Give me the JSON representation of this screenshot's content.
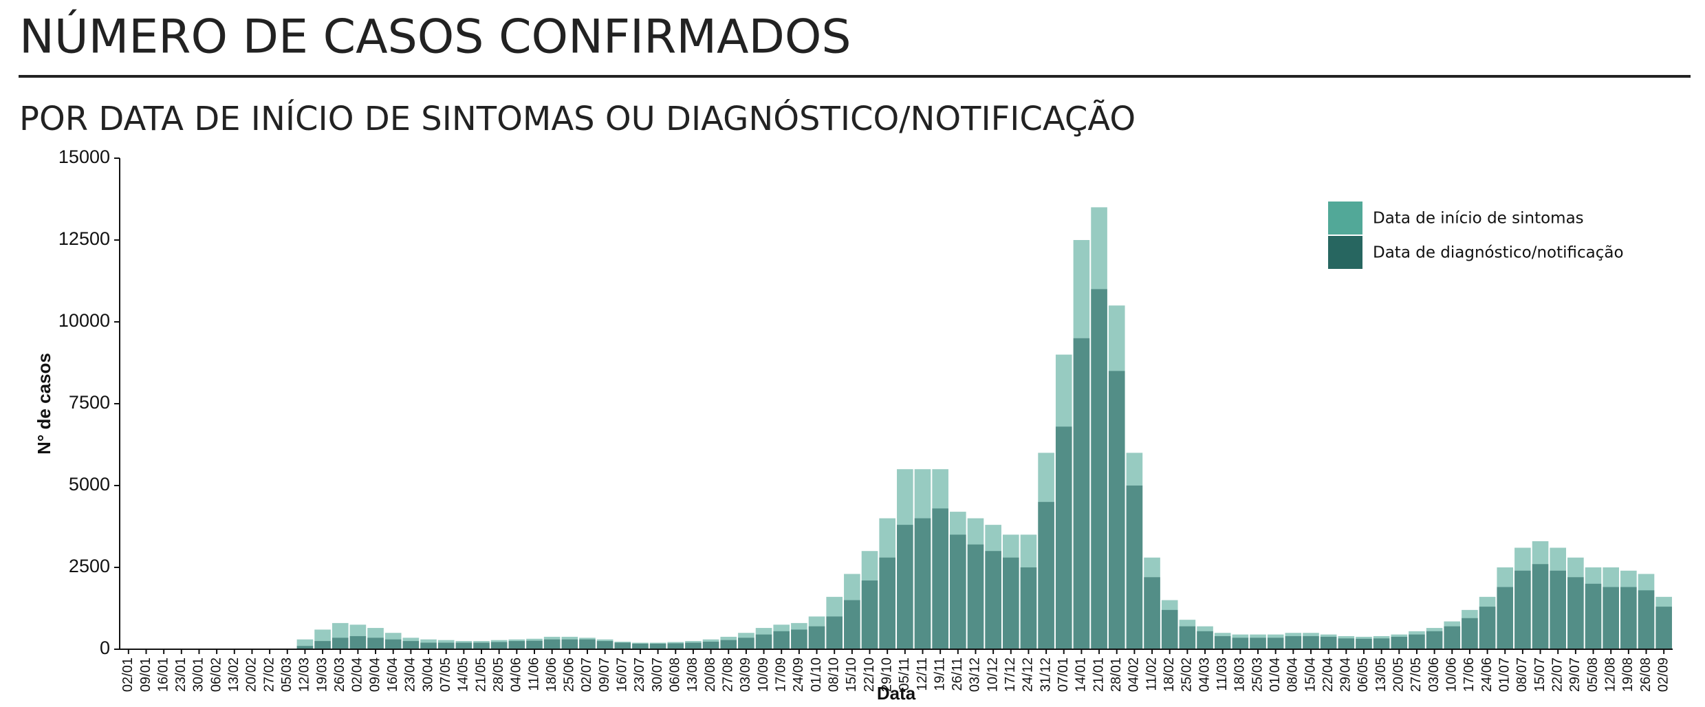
{
  "chart_data": {
    "type": "bar",
    "title": "NÚMERO DE CASOS CONFIRMADOS",
    "subtitle": "POR DATA DE INÍCIO DE SINTOMAS OU DIAGNÓSTICO/NOTIFICAÇÃO",
    "x_label": "Data",
    "y_label": "N° de casos",
    "categories": [
      "02/01",
      "09/01",
      "16/01",
      "23/01",
      "30/01",
      "06/02",
      "13/02",
      "20/02",
      "27/02",
      "05/03",
      "12/03",
      "19/03",
      "26/03",
      "02/04",
      "09/04",
      "16/04",
      "23/04",
      "30/04",
      "07/05",
      "14/05",
      "21/05",
      "28/05",
      "04/06",
      "11/06",
      "18/06",
      "25/06",
      "02/07",
      "09/07",
      "16/07",
      "23/07",
      "30/07",
      "06/08",
      "13/08",
      "20/08",
      "27/08",
      "03/09",
      "10/09",
      "17/09",
      "24/09",
      "01/10",
      "08/10",
      "15/10",
      "22/10",
      "29/10",
      "05/11",
      "12/11",
      "19/11",
      "26/11",
      "03/12",
      "10/12",
      "17/12",
      "24/12",
      "31/12",
      "07/01",
      "14/01",
      "21/01",
      "28/01",
      "04/02",
      "11/02",
      "18/02",
      "25/02",
      "04/03",
      "11/03",
      "18/03",
      "25/03",
      "01/04",
      "08/04",
      "15/04",
      "22/04",
      "29/04",
      "06/05",
      "13/05",
      "20/05",
      "27/05",
      "03/06",
      "10/06",
      "17/06",
      "24/06",
      "01/07",
      "08/07",
      "15/07",
      "22/07",
      "29/07",
      "05/08",
      "12/08",
      "19/08",
      "26/08",
      "02/09"
    ],
    "series": [
      {
        "name": "Data de início de sintomas",
        "color": "#52a898",
        "values": [
          0,
          0,
          0,
          0,
          0,
          0,
          0,
          0,
          0,
          20,
          300,
          600,
          800,
          750,
          650,
          500,
          350,
          300,
          280,
          250,
          250,
          280,
          300,
          320,
          380,
          380,
          350,
          300,
          230,
          200,
          200,
          220,
          250,
          300,
          380,
          500,
          650,
          750,
          800,
          1000,
          1600,
          2300,
          3000,
          4000,
          5500,
          5500,
          5500,
          4200,
          4000,
          3800,
          3500,
          3500,
          6000,
          9000,
          12500,
          13500,
          10500,
          6000,
          2800,
          1500,
          900,
          700,
          500,
          450,
          450,
          450,
          500,
          500,
          450,
          400,
          380,
          400,
          450,
          550,
          650,
          850,
          1200,
          1600,
          2500,
          3100,
          3300,
          3100,
          2800,
          2500,
          2500,
          2400,
          2300,
          1600
        ]
      },
      {
        "name": "Data de diagnóstico/notificação",
        "color": "#276660",
        "values": [
          0,
          0,
          0,
          0,
          0,
          0,
          0,
          0,
          0,
          10,
          100,
          250,
          350,
          400,
          350,
          300,
          250,
          200,
          200,
          200,
          200,
          220,
          250,
          260,
          300,
          300,
          300,
          250,
          200,
          170,
          170,
          180,
          200,
          230,
          280,
          350,
          450,
          550,
          600,
          700,
          1000,
          1500,
          2100,
          2800,
          3800,
          4000,
          4300,
          3500,
          3200,
          3000,
          2800,
          2500,
          4500,
          6800,
          9500,
          11000,
          8500,
          5000,
          2200,
          1200,
          700,
          550,
          400,
          350,
          350,
          350,
          400,
          400,
          380,
          330,
          320,
          330,
          380,
          450,
          550,
          700,
          950,
          1300,
          1900,
          2400,
          2600,
          2400,
          2200,
          2000,
          1900,
          1900,
          1800,
          1300
        ]
      }
    ],
    "ylim": [
      0,
      15000
    ],
    "yticks": [
      0,
      2500,
      5000,
      7500,
      10000,
      12500,
      15000
    ]
  }
}
